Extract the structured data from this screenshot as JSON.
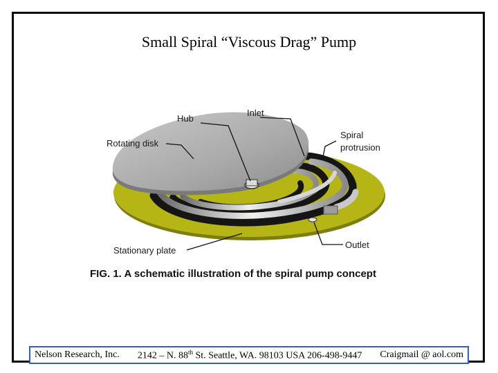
{
  "title": "Small Spiral “Viscous Drag” Pump",
  "labels": {
    "hub": "Hub",
    "inlet": "Inlet",
    "rotating_disk": "Rotating disk",
    "spiral_line1": "Spiral",
    "spiral_line2": "protrusion",
    "stationary_plate": "Stationary plate",
    "outlet": "Outlet"
  },
  "caption": "FIG. 1. A schematic illustration of the spiral pump concept",
  "footer": {
    "company": "Nelson Research, Inc.",
    "address_prefix": "2142 – N. 88",
    "address_sup": "th",
    "address_suffix": " St. Seattle, WA. 98103  USA  206-498-9447",
    "email": "Craigmail @ aol.com"
  },
  "colors": {
    "plate": "#b5b516",
    "disk": "#a6a6a6",
    "groove": "#151515",
    "footer_border": "#2f5bd3"
  }
}
